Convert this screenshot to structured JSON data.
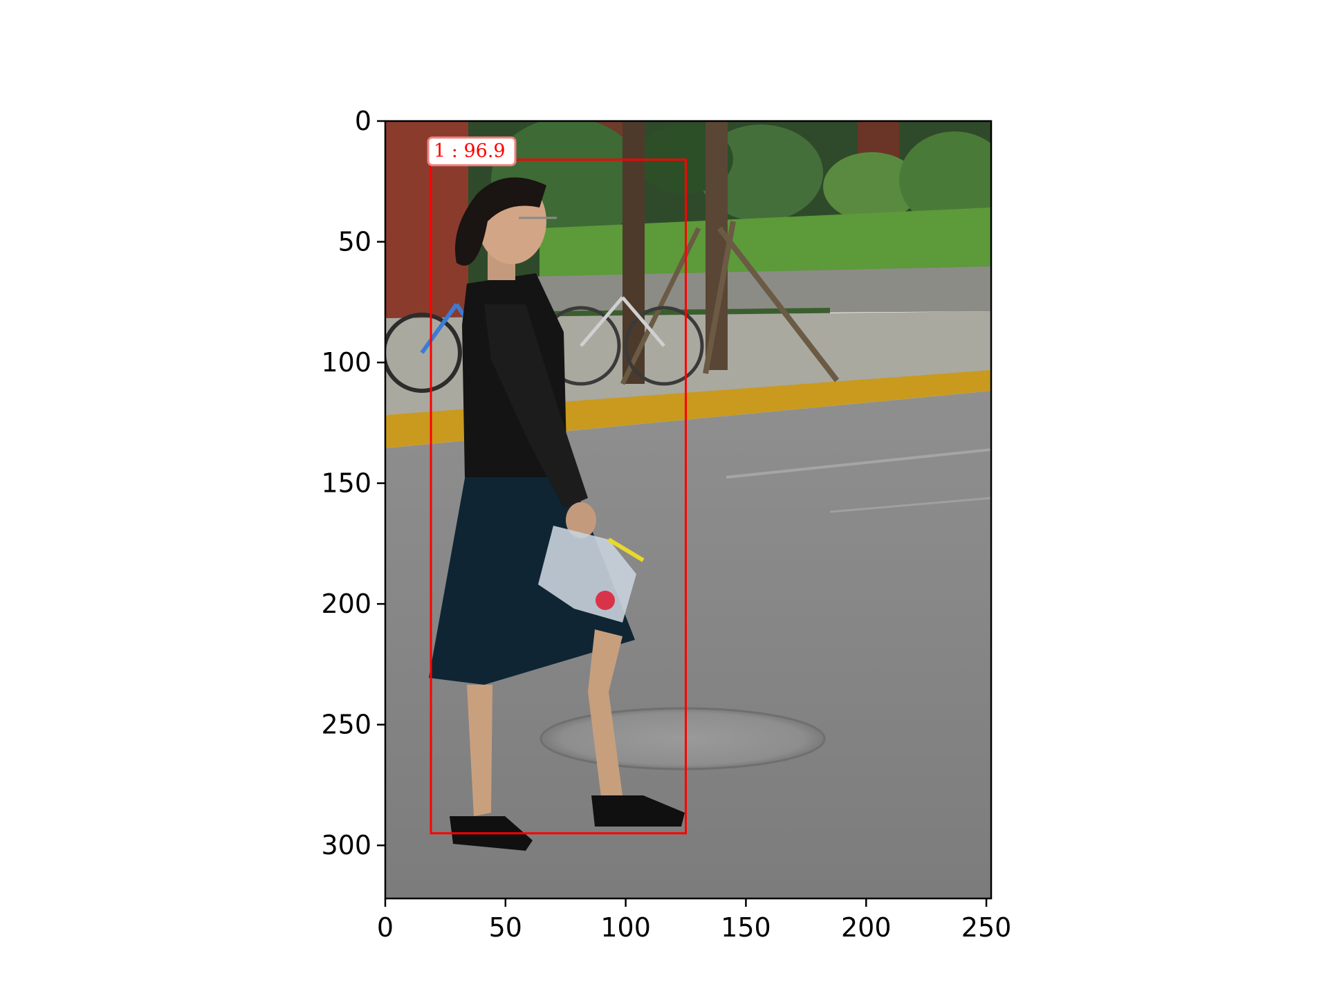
{
  "figure": {
    "x_ticks": [
      "0",
      "50",
      "100",
      "150",
      "200",
      "250"
    ],
    "y_ticks": [
      "0",
      "50",
      "100",
      "150",
      "200",
      "250",
      "300"
    ],
    "x_tick_values": [
      0,
      50,
      100,
      150,
      200,
      250
    ],
    "y_tick_values": [
      0,
      50,
      100,
      150,
      200,
      250,
      300
    ],
    "x_range": [
      0,
      252
    ],
    "y_range": [
      0,
      322
    ]
  },
  "detection": {
    "label": "1 : 96.9",
    "box": {
      "x1": 19,
      "y1": 16,
      "x2": 125,
      "y2": 295
    },
    "color": "#ff0000"
  },
  "scene": {
    "subject": "woman walking",
    "setting": "street with curb, grass, trees and bicycles"
  }
}
